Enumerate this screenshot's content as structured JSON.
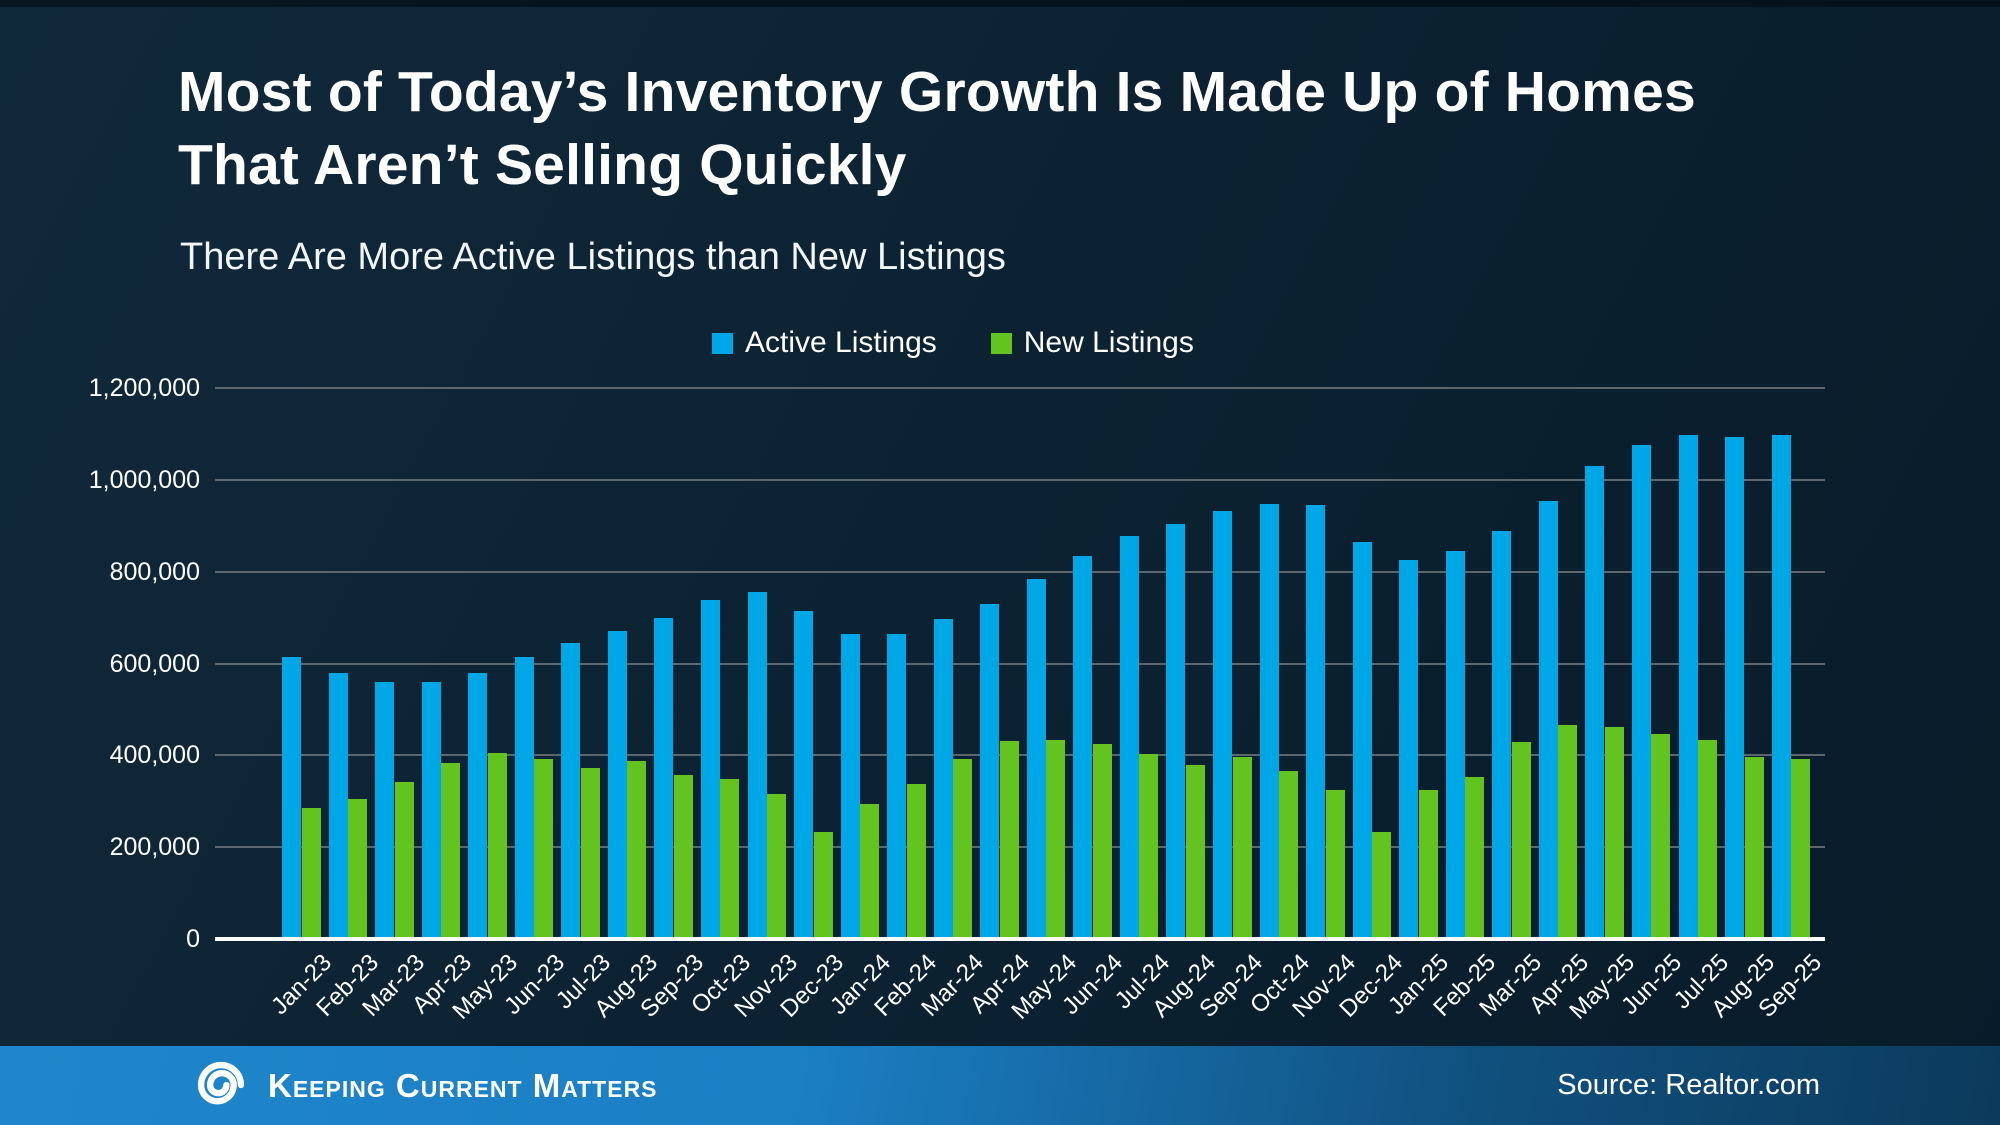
{
  "slide": {
    "title_line1": "Most of Today’s Inventory Growth Is Made Up of Homes",
    "title_line2": "That Aren’t Selling Quickly",
    "subtitle": "There Are More Active Listings than New Listings"
  },
  "legend": {
    "items": [
      {
        "label": "Active Listings",
        "color": "#00a7e6"
      },
      {
        "label": "New Listings",
        "color": "#63c420"
      }
    ]
  },
  "footer": {
    "brand": "Keeping Current Matters",
    "source": "Source: Realtor.com",
    "band_left_color": "#1b7fc4",
    "band_right_color": "#0c3a5c"
  },
  "chart_data": {
    "type": "bar",
    "title": "There Are More Active Listings than New Listings",
    "categories": [
      "Jan-23",
      "Feb-23",
      "Mar-23",
      "Apr-23",
      "May-23",
      "Jun-23",
      "Jul-23",
      "Aug-23",
      "Sep-23",
      "Oct-23",
      "Nov-23",
      "Dec-23",
      "Jan-24",
      "Feb-24",
      "Mar-24",
      "Apr-24",
      "May-24",
      "Jun-24",
      "Jul-24",
      "Aug-24",
      "Sep-24",
      "Oct-24",
      "Nov-24",
      "Dec-24",
      "Jan-25",
      "Feb-25",
      "Mar-25",
      "Apr-25",
      "May-25",
      "Jun-25",
      "Jul-25",
      "Aug-25",
      "Sep-25"
    ],
    "series": [
      {
        "name": "Active Listings",
        "color": "#00a7e6",
        "values": [
          615000,
          580000,
          560000,
          560000,
          580000,
          615000,
          644000,
          670000,
          700000,
          738000,
          756000,
          715000,
          665000,
          665000,
          696000,
          730000,
          785000,
          835000,
          878000,
          903000,
          933000,
          948000,
          945000,
          865000,
          825000,
          845000,
          888000,
          955000,
          1030000,
          1076000,
          1098000,
          1094000,
          1097000
        ]
      },
      {
        "name": "New Listings",
        "color": "#63c420",
        "values": [
          286000,
          304000,
          341000,
          384000,
          406000,
          391000,
          372000,
          387000,
          357000,
          348000,
          316000,
          234000,
          295000,
          338000,
          393000,
          432000,
          434000,
          424000,
          402000,
          380000,
          396000,
          365000,
          324000,
          233000,
          325000,
          352000,
          430000,
          466000,
          461000,
          446000,
          433000,
          396000,
          391000
        ]
      }
    ],
    "ylim": [
      0,
      1200000
    ],
    "ytick_interval": 200000,
    "ytick_labels": [
      "0",
      "200,000",
      "400,000",
      "600,000",
      "800,000",
      "1,000,000",
      "1,200,000"
    ],
    "grid": "horizontal-gridlines-on",
    "legend_position": "top",
    "xlabel": "",
    "ylabel": ""
  }
}
